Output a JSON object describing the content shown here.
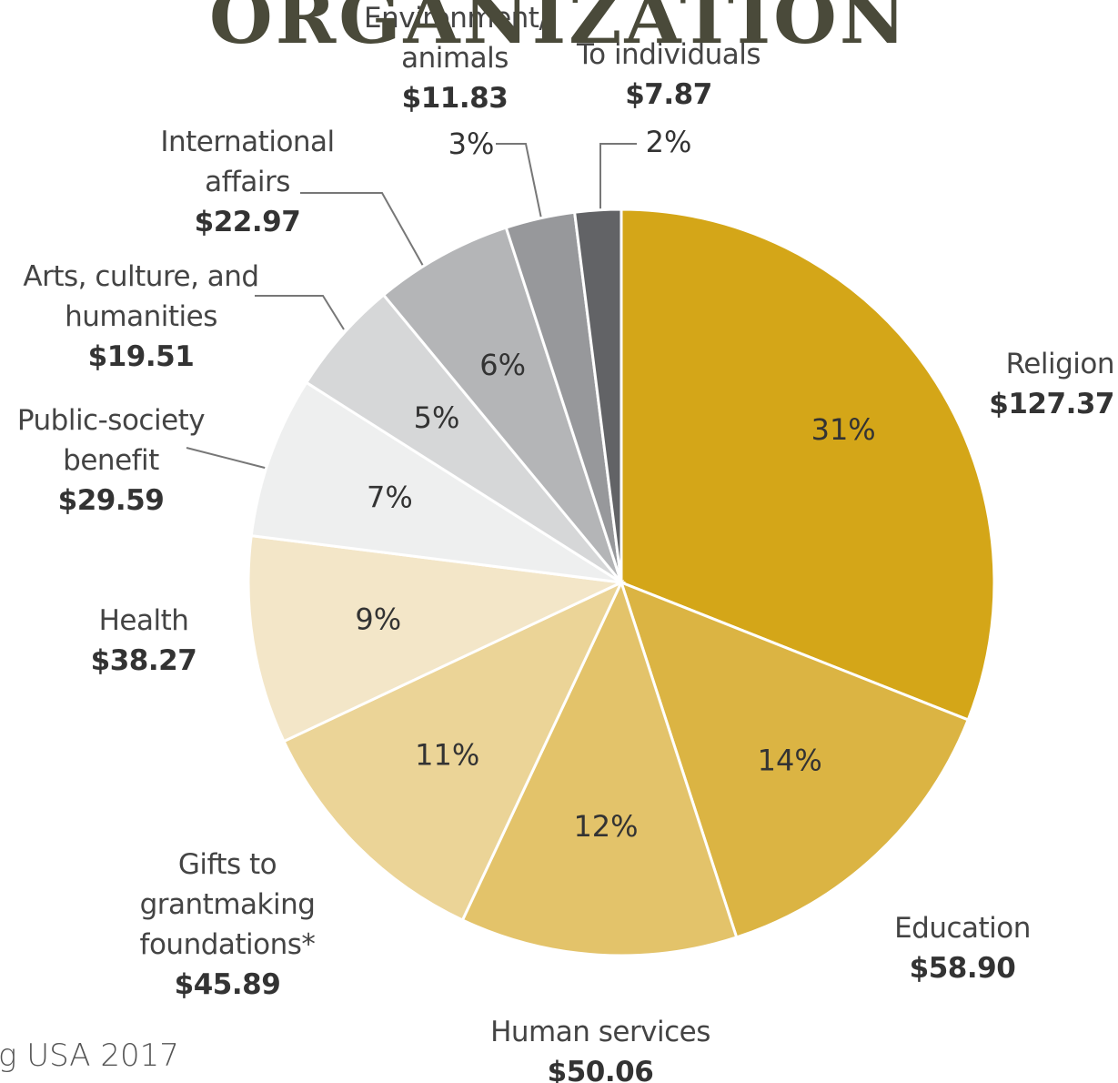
{
  "chart_data": {
    "type": "pie",
    "title": "ORGANIZATION",
    "source": "g USA 2017",
    "categories": [
      "Religion",
      "Education",
      "Human services",
      "Gifts to grantmaking foundations*",
      "Health",
      "Public-society benefit",
      "Arts, culture, and humanities",
      "International affairs",
      "Environment/ animals",
      "To individuals"
    ],
    "values": [
      31,
      14,
      12,
      11,
      9,
      7,
      5,
      6,
      3,
      2
    ],
    "value_labels": [
      "31%",
      "14%",
      "12%",
      "11%",
      "9%",
      "7%",
      "5%",
      "6%",
      "3%",
      "2%"
    ],
    "amounts": [
      127.37,
      58.9,
      50.06,
      45.89,
      38.27,
      29.59,
      19.51,
      22.97,
      11.83,
      7.87
    ],
    "amount_labels": [
      "$127.37",
      "$58.90",
      "$50.06",
      "$45.89",
      "$38.27",
      "$29.59",
      "$19.51",
      "$22.97",
      "$11.83",
      "$7.87"
    ],
    "colors": [
      "#d4a618",
      "#dbb443",
      "#e3c36a",
      "#ebd497",
      "#f3e6c8",
      "#eeefef",
      "#d6d7d8",
      "#b4b5b7",
      "#97989b",
      "#626366"
    ]
  }
}
